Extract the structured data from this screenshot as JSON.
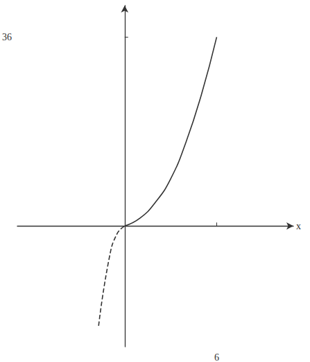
{
  "chart_data": {
    "type": "line",
    "x_label": "x",
    "xlim": [
      -7,
      11
    ],
    "ylim": [
      -23,
      42
    ],
    "xticks": [
      6
    ],
    "yticks": [
      36
    ],
    "grid": false,
    "color": "#333333",
    "series": [
      {
        "x": [
          0,
          1,
          2,
          3,
          4,
          5,
          6
        ],
        "values": [
          0,
          1.5,
          4.5,
          9,
          16,
          25,
          36
        ],
        "line_style": "solid",
        "marker": "none"
      },
      {
        "x": [
          -1.7,
          -1,
          -0.5,
          0
        ],
        "values": [
          -19,
          -6,
          -1.5,
          0
        ],
        "line_style": "dashed",
        "marker": "none"
      }
    ]
  }
}
